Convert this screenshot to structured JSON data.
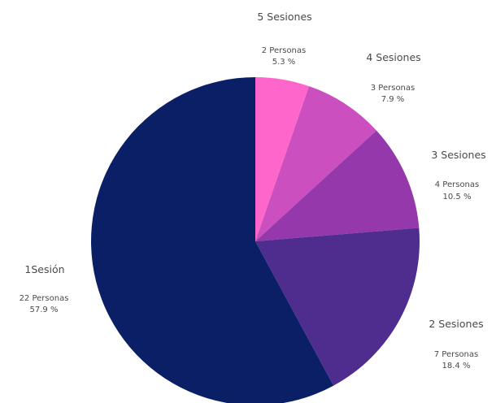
{
  "chart_data": {
    "type": "pie",
    "title": "",
    "slices": [
      {
        "label": "5 Sesiones",
        "people": "2 Personas",
        "percent_label": "5.3 %",
        "value": 5.3,
        "color": "#ff66cc"
      },
      {
        "label": "4 Sesiones",
        "people": "3 Personas",
        "percent_label": "7.9 %",
        "value": 7.9,
        "color": "#cc4fbf"
      },
      {
        "label": "3 Sesiones",
        "people": "4 Personas",
        "percent_label": "10.5 %",
        "value": 10.5,
        "color": "#9538ab"
      },
      {
        "label": "2 Sesiones",
        "people": "7 Personas",
        "percent_label": "18.4 %",
        "value": 18.4,
        "color": "#4e2d8f"
      },
      {
        "label": "1Sesión",
        "people": "22 Personas",
        "percent_label": "57.9 %",
        "value": 57.9,
        "color": "#0a1f66"
      }
    ],
    "legend": "none"
  }
}
